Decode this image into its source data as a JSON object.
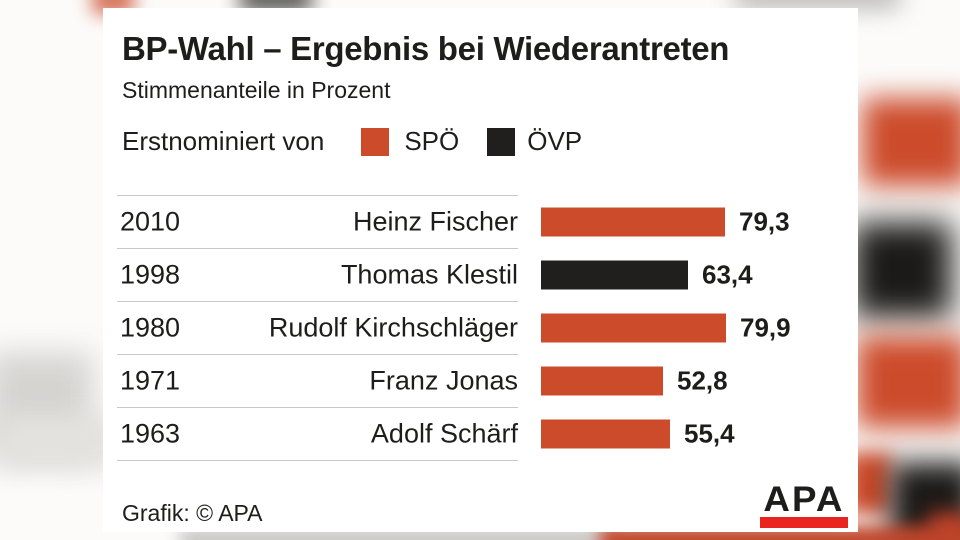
{
  "footer": {
    "credit": "Grafik: © APA",
    "logo_text": "APA",
    "logo_bar_color": "#e8251f"
  },
  "chart_data": {
    "type": "bar",
    "orientation": "horizontal",
    "title": "BP-Wahl – Ergebnis bei Wiederantreten",
    "subtitle": "Stimmenanteile in Prozent",
    "unit": "percent",
    "xlim": [
      0,
      100
    ],
    "grid": false,
    "legend_title": "Erstnominiert von",
    "legend": [
      {
        "label": "SPÖ",
        "color": "#cc4b2b"
      },
      {
        "label": "ÖVP",
        "color": "#211f1e"
      }
    ],
    "party_colors": {
      "SPÖ": "#cc4b2b",
      "ÖVP": "#211f1e"
    },
    "rows": [
      {
        "year": "2010",
        "name": "Heinz Fischer",
        "party": "SPÖ",
        "value": 79.3,
        "value_label": "79,3"
      },
      {
        "year": "1998",
        "name": "Thomas Klestil",
        "party": "ÖVP",
        "value": 63.4,
        "value_label": "63,4"
      },
      {
        "year": "1980",
        "name": "Rudolf Kirchschläger",
        "party": "SPÖ",
        "value": 79.9,
        "value_label": "79,9"
      },
      {
        "year": "1971",
        "name": "Franz Jonas",
        "party": "SPÖ",
        "value": 52.8,
        "value_label": "52,8"
      },
      {
        "year": "1963",
        "name": "Adolf Schärf",
        "party": "SPÖ",
        "value": 55.4,
        "value_label": "55,4"
      }
    ]
  }
}
